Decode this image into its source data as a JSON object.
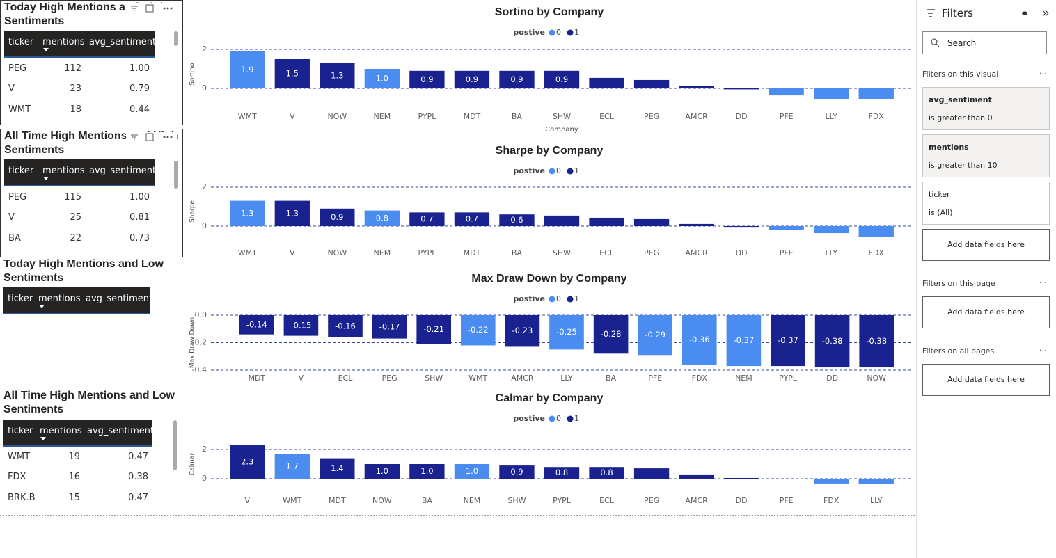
{
  "chart_data": [
    {
      "type": "bar",
      "title": "Sortino by Company",
      "legend_title": "postive",
      "x_label": "Company",
      "y_label": "Sortino",
      "categories": [
        "WMT",
        "V",
        "NOW",
        "NEM",
        "PYPL",
        "MDT",
        "BA",
        "SHW",
        "ECL",
        "PEG",
        "AMCR",
        "DD",
        "PFE",
        "LLY",
        "FDX"
      ],
      "series": [
        {
          "name": "0",
          "color": "#4a8cf0",
          "values": [
            1.9,
            null,
            null,
            1.0,
            null,
            null,
            null,
            null,
            null,
            null,
            null,
            null,
            -0.36,
            -0.54,
            -0.57
          ],
          "value_labels": [
            "1.9",
            null,
            null,
            "1.0",
            null,
            null,
            null,
            null,
            null,
            null,
            null,
            null,
            null,
            null,
            null
          ]
        },
        {
          "name": "1",
          "color": "#1a228f",
          "values": [
            null,
            1.5,
            1.3,
            null,
            0.9,
            0.9,
            0.9,
            0.9,
            0.54,
            0.43,
            0.14,
            -0.05,
            null,
            null,
            null
          ],
          "value_labels": [
            null,
            "1.5",
            "1.3",
            null,
            "0.9",
            "0.9",
            "0.9",
            "0.9",
            null,
            null,
            null,
            null,
            null,
            null,
            null
          ]
        }
      ],
      "ylim": [
        -0.65,
        2.1
      ],
      "yticks": [
        0,
        2
      ],
      "grid": true
    },
    {
      "type": "bar",
      "title": "Sharpe by Company",
      "legend_title": "postive",
      "y_label": "Sharpe",
      "categories": [
        "WMT",
        "V",
        "NOW",
        "NEM",
        "PYPL",
        "MDT",
        "BA",
        "SHW",
        "ECL",
        "PEG",
        "AMCR",
        "DD",
        "PFE",
        "LLY",
        "FDX"
      ],
      "series": [
        {
          "name": "0",
          "color": "#4a8cf0",
          "values": [
            1.3,
            null,
            null,
            0.8,
            null,
            null,
            null,
            null,
            null,
            null,
            null,
            null,
            -0.21,
            -0.36,
            -0.54
          ],
          "value_labels": [
            "1.3",
            null,
            null,
            "0.8",
            null,
            null,
            null,
            null,
            null,
            null,
            null,
            null,
            null,
            null,
            null
          ]
        },
        {
          "name": "1",
          "color": "#1a228f",
          "values": [
            null,
            1.3,
            0.9,
            null,
            0.7,
            0.7,
            0.6,
            0.54,
            0.43,
            0.36,
            0.11,
            -0.04,
            null,
            null,
            null
          ],
          "value_labels": [
            null,
            "1.3",
            "0.9",
            null,
            "0.7",
            "0.7",
            "0.6",
            null,
            null,
            null,
            null,
            null,
            null,
            null,
            null
          ]
        }
      ],
      "ylim": [
        -0.6,
        2.1
      ],
      "yticks": [
        0,
        2
      ],
      "grid": true
    },
    {
      "type": "bar",
      "title": "Max Draw Down by Company",
      "legend_title": "postive",
      "y_label": "Max Draw Down",
      "categories": [
        "MDT",
        "V",
        "ECL",
        "PEG",
        "SHW",
        "WMT",
        "AMCR",
        "LLY",
        "BA",
        "PFE",
        "FDX",
        "NEM",
        "PYPL",
        "DD",
        "NOW"
      ],
      "series": [
        {
          "name": "0",
          "color": "#4a8cf0",
          "values": [
            null,
            null,
            null,
            null,
            null,
            -0.22,
            null,
            -0.25,
            null,
            -0.29,
            -0.36,
            -0.37,
            null,
            null,
            null
          ]
        },
        {
          "name": "1",
          "color": "#1a228f",
          "values": [
            -0.14,
            -0.15,
            -0.16,
            -0.17,
            -0.21,
            null,
            -0.23,
            null,
            -0.28,
            null,
            null,
            null,
            -0.37,
            -0.38,
            -0.38
          ]
        }
      ],
      "ylim": [
        -0.4,
        0
      ],
      "yticks": [
        {
          "value": 0,
          "label": "0.0"
        },
        -0.2,
        -0.4
      ],
      "grid": true
    },
    {
      "type": "bar",
      "title": "Calmar by Company",
      "legend_title": "postive",
      "y_label": "Calmar",
      "categories": [
        "V",
        "WMT",
        "MDT",
        "NOW",
        "BA",
        "NEM",
        "SHW",
        "PYPL",
        "ECL",
        "PEG",
        "AMCR",
        "DD",
        "PFE",
        "FDX",
        "LLY"
      ],
      "series": [
        {
          "name": "0",
          "color": "#4a8cf0",
          "values": [
            null,
            1.7,
            null,
            null,
            null,
            1.0,
            null,
            null,
            null,
            null,
            null,
            null,
            -0.02,
            -0.33,
            -0.38
          ],
          "value_labels": [
            null,
            "1.7",
            null,
            null,
            null,
            "1.0",
            null,
            null,
            null,
            null,
            null,
            null,
            null,
            null,
            null
          ]
        },
        {
          "name": "1",
          "color": "#1a228f",
          "values": [
            2.3,
            null,
            1.4,
            1.0,
            1.0,
            null,
            0.9,
            0.8,
            0.8,
            0.71,
            0.29,
            0.05,
            null,
            null,
            null
          ],
          "value_labels": [
            "2.3",
            null,
            "1.4",
            "1.0",
            "1.0",
            null,
            "0.9",
            "0.8",
            "0.8",
            null,
            null,
            null,
            null,
            null,
            null
          ]
        }
      ],
      "ylim": [
        -0.4,
        2.4
      ],
      "yticks": [
        0,
        2
      ],
      "grid": true
    }
  ],
  "tables": [
    {
      "title": "Today High Mentions and High Sentiments",
      "columns": [
        "ticker",
        "mentions",
        "avg_sentiment"
      ],
      "rows": [
        [
          "PEG",
          "112",
          "1.00"
        ],
        [
          "V",
          "23",
          "0.79"
        ],
        [
          "WMT",
          "18",
          "0.44"
        ]
      ]
    },
    {
      "title": "All Time High Mentions and High Sentiments",
      "columns": [
        "ticker",
        "mentions",
        "avg_sentiment"
      ],
      "rows": [
        [
          "PEG",
          "115",
          "1.00"
        ],
        [
          "V",
          "25",
          "0.81"
        ],
        [
          "BA",
          "22",
          "0.73"
        ]
      ]
    },
    {
      "title": "Today High Mentions and Low Sentiments",
      "columns": [
        "ticker",
        "mentions",
        "avg_sentiment"
      ],
      "rows": []
    },
    {
      "title": "All Time High Mentions and Low Sentiments",
      "columns": [
        "ticker",
        "mentions",
        "avg_sentiment"
      ],
      "rows": [
        [
          "WMT",
          "19",
          "0.47"
        ],
        [
          "FDX",
          "16",
          "0.38"
        ],
        [
          "BRK.B",
          "15",
          "0.47"
        ]
      ]
    }
  ],
  "filters": {
    "title": "Filters",
    "search": "Search",
    "sections": [
      {
        "title": "Filters on this visual",
        "cards": [
          {
            "field": "avg_sentiment",
            "condition": "is greater than 0"
          },
          {
            "field": "mentions",
            "condition": "is greater than 10"
          },
          {
            "field": "ticker",
            "condition": "is (All)"
          }
        ],
        "add": "Add data fields here"
      },
      {
        "title": "Filters on this page",
        "cards": [],
        "add": "Add data fields here"
      },
      {
        "title": "Filters on all pages",
        "cards": [],
        "add": "Add data fields here"
      }
    ]
  }
}
